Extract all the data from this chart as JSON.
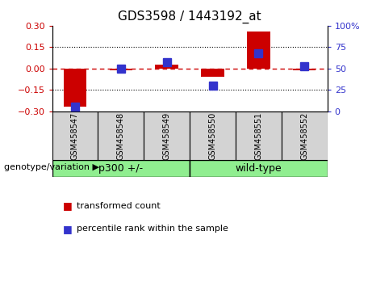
{
  "title": "GDS3598 / 1443192_at",
  "samples": [
    "GSM458547",
    "GSM458548",
    "GSM458549",
    "GSM458550",
    "GSM458551",
    "GSM458552"
  ],
  "red_values": [
    -0.27,
    -0.01,
    0.03,
    -0.06,
    0.26,
    -0.01
  ],
  "blue_values_pct": [
    5,
    50,
    57,
    30,
    68,
    53
  ],
  "ylim_left": [
    -0.3,
    0.3
  ],
  "ylim_right": [
    0,
    100
  ],
  "yticks_left": [
    -0.3,
    -0.15,
    0,
    0.15,
    0.3
  ],
  "yticks_right": [
    0,
    25,
    50,
    75,
    100
  ],
  "left_color": "#CC0000",
  "right_color": "#3333CC",
  "hline_color": "#CC0000",
  "bar_width": 0.5,
  "blue_marker_size": 7,
  "legend_red": "transformed count",
  "legend_blue": "percentile rank within the sample",
  "group_label": "genotype/variation",
  "group1_label": "p300 +/-",
  "group2_label": "wild-type",
  "group_color": "#90EE90",
  "label_bg": "#d3d3d3",
  "fig_bg": "#ffffff"
}
